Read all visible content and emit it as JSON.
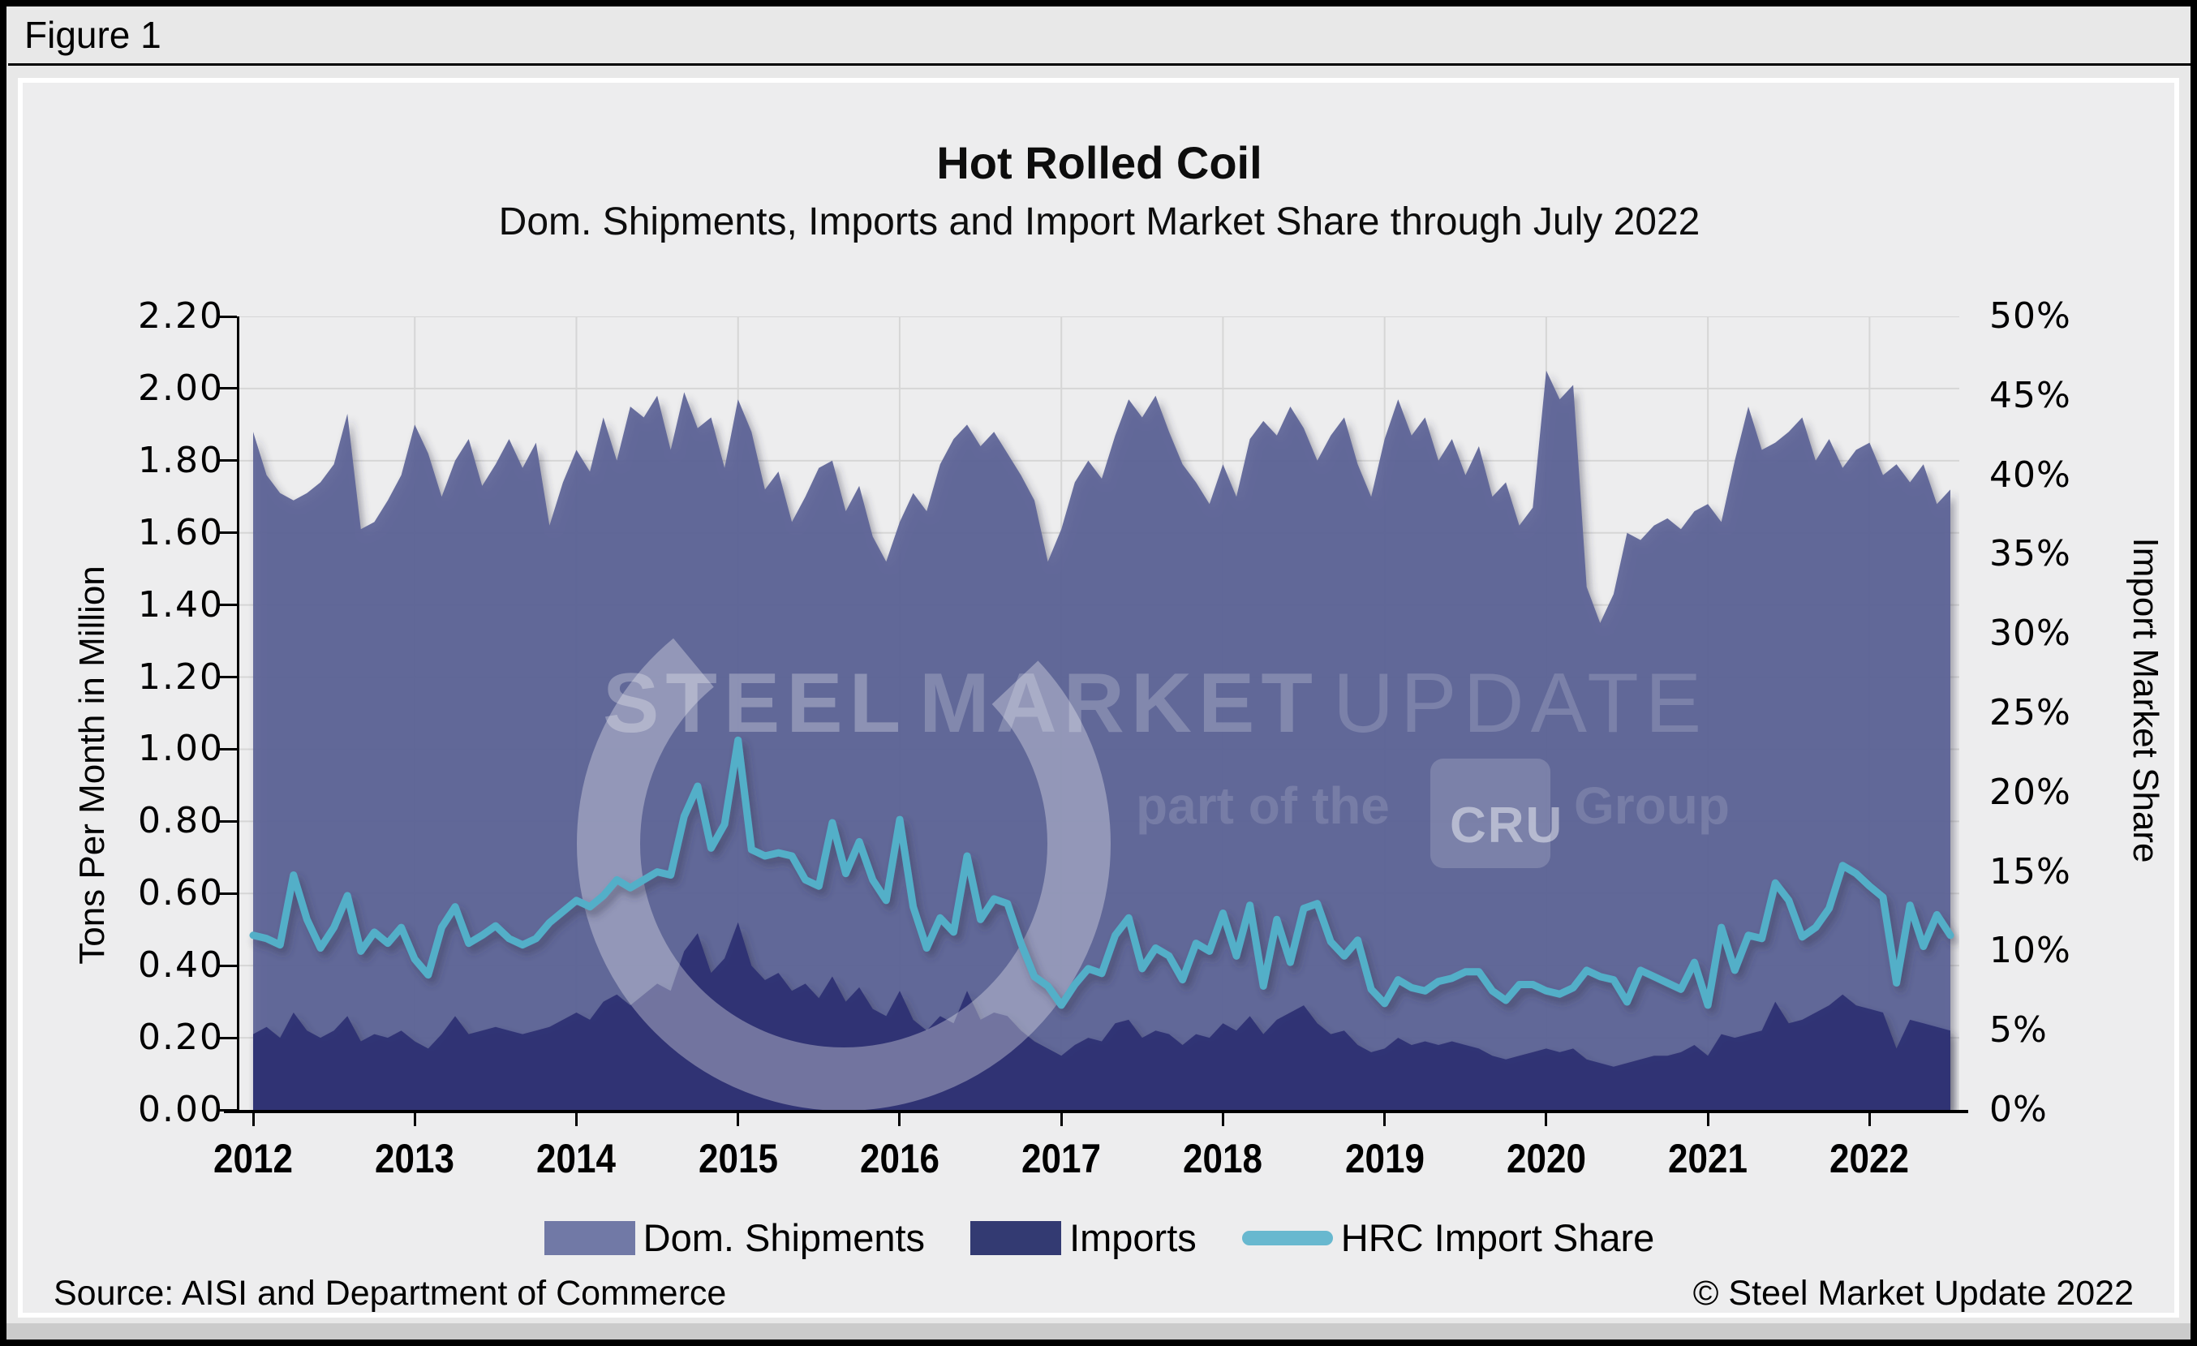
{
  "figure_label": "Figure 1",
  "title": "Hot Rolled Coil",
  "subtitle": "Dom. Shipments, Imports and Import Market Share through July 2022",
  "left_axis": {
    "label": "Tons Per Month in Million",
    "min": 0,
    "max": 2.2,
    "step": 0.2,
    "ticks": [
      "0.00",
      "0.20",
      "0.40",
      "0.60",
      "0.80",
      "1.00",
      "1.20",
      "1.40",
      "1.60",
      "1.80",
      "2.00",
      "2.20"
    ]
  },
  "right_axis": {
    "label": "Import Market Share",
    "min": 0,
    "max": 50,
    "step": 5,
    "ticks": [
      "0%",
      "5%",
      "10%",
      "15%",
      "20%",
      "25%",
      "30%",
      "35%",
      "40%",
      "45%",
      "50%"
    ]
  },
  "x_axis": {
    "years": [
      "2012",
      "2013",
      "2014",
      "2015",
      "2016",
      "2017",
      "2018",
      "2019",
      "2020",
      "2021",
      "2022"
    ]
  },
  "legend": {
    "items": [
      {
        "label": "Dom. Shipments",
        "color": "#7179a6",
        "type": "area-swatch"
      },
      {
        "label": "Imports",
        "color": "#333a72",
        "type": "area-swatch"
      },
      {
        "label": "HRC Import Share",
        "color": "#68b8cf",
        "type": "line-swatch"
      }
    ]
  },
  "watermark": {
    "words": [
      {
        "text": "STEEL",
        "opacity": 0.2,
        "weight": "bold"
      },
      {
        "text": "MARKET",
        "opacity": 0.13,
        "weight": "bold"
      },
      {
        "text": "UPDATE",
        "opacity": 0.09,
        "weight": "normal"
      }
    ],
    "tagline_prefix": "part of the",
    "tagline_box": "CRU",
    "tagline_suffix": "Group",
    "logo": "crescent-c-logo"
  },
  "source": "Source: AISI and Department of Commerce",
  "copyright": "© Steel Market Update 2022",
  "colors": {
    "dom_shipments_fill": "#5d6397",
    "imports_fill": "#2e3274",
    "share_line": "#53afc8",
    "gridline": "#d6d6d6",
    "axis": "#000000"
  },
  "chart_data": {
    "type": "area",
    "x_unit": "month",
    "x_range": [
      "2012-01",
      "2022-07"
    ],
    "left_ylim": [
      0,
      2.2
    ],
    "right_ylim": [
      0,
      50
    ],
    "grid": true,
    "legend_position": "bottom",
    "series": [
      {
        "name": "Dom. Shipments",
        "axis": "left",
        "render": "area",
        "values": [
          1.88,
          1.76,
          1.71,
          1.69,
          1.71,
          1.74,
          1.79,
          1.93,
          1.61,
          1.63,
          1.69,
          1.76,
          1.9,
          1.82,
          1.7,
          1.8,
          1.86,
          1.73,
          1.79,
          1.86,
          1.78,
          1.85,
          1.62,
          1.74,
          1.83,
          1.77,
          1.92,
          1.8,
          1.95,
          1.92,
          1.98,
          1.83,
          1.99,
          1.89,
          1.92,
          1.78,
          1.97,
          1.88,
          1.72,
          1.77,
          1.63,
          1.7,
          1.78,
          1.8,
          1.66,
          1.73,
          1.59,
          1.52,
          1.63,
          1.71,
          1.66,
          1.79,
          1.86,
          1.9,
          1.84,
          1.88,
          1.82,
          1.76,
          1.69,
          1.52,
          1.61,
          1.74,
          1.8,
          1.75,
          1.87,
          1.97,
          1.92,
          1.98,
          1.88,
          1.79,
          1.74,
          1.68,
          1.79,
          1.7,
          1.86,
          1.91,
          1.87,
          1.95,
          1.89,
          1.8,
          1.87,
          1.92,
          1.79,
          1.7,
          1.86,
          1.97,
          1.87,
          1.92,
          1.8,
          1.86,
          1.76,
          1.84,
          1.7,
          1.74,
          1.62,
          1.67,
          2.05,
          1.97,
          2.01,
          1.45,
          1.35,
          1.43,
          1.6,
          1.58,
          1.62,
          1.64,
          1.61,
          1.66,
          1.68,
          1.63,
          1.8,
          1.95,
          1.83,
          1.85,
          1.88,
          1.92,
          1.8,
          1.86,
          1.78,
          1.83,
          1.85,
          1.76,
          1.79,
          1.74,
          1.79,
          1.68,
          1.72
        ]
      },
      {
        "name": "Imports",
        "axis": "left",
        "render": "area",
        "values": [
          0.21,
          0.23,
          0.2,
          0.27,
          0.22,
          0.2,
          0.22,
          0.26,
          0.19,
          0.21,
          0.2,
          0.22,
          0.19,
          0.17,
          0.21,
          0.26,
          0.21,
          0.22,
          0.23,
          0.22,
          0.21,
          0.22,
          0.23,
          0.25,
          0.27,
          0.25,
          0.3,
          0.32,
          0.29,
          0.32,
          0.35,
          0.33,
          0.44,
          0.49,
          0.38,
          0.42,
          0.52,
          0.4,
          0.36,
          0.38,
          0.33,
          0.35,
          0.31,
          0.37,
          0.3,
          0.34,
          0.28,
          0.26,
          0.33,
          0.25,
          0.22,
          0.26,
          0.24,
          0.33,
          0.25,
          0.27,
          0.26,
          0.22,
          0.19,
          0.17,
          0.15,
          0.18,
          0.2,
          0.19,
          0.24,
          0.25,
          0.2,
          0.22,
          0.21,
          0.18,
          0.21,
          0.2,
          0.24,
          0.22,
          0.26,
          0.21,
          0.25,
          0.27,
          0.29,
          0.24,
          0.21,
          0.22,
          0.18,
          0.16,
          0.17,
          0.2,
          0.18,
          0.19,
          0.18,
          0.19,
          0.18,
          0.17,
          0.15,
          0.14,
          0.15,
          0.16,
          0.17,
          0.16,
          0.17,
          0.14,
          0.13,
          0.12,
          0.13,
          0.14,
          0.15,
          0.15,
          0.16,
          0.18,
          0.15,
          0.21,
          0.2,
          0.21,
          0.22,
          0.3,
          0.24,
          0.25,
          0.27,
          0.29,
          0.32,
          0.29,
          0.28,
          0.27,
          0.17,
          0.25,
          0.24,
          0.23,
          0.22
        ]
      },
      {
        "name": "HRC Import Share",
        "axis": "right",
        "render": "line",
        "values": [
          11.0,
          10.8,
          10.4,
          14.8,
          12.0,
          10.2,
          11.5,
          13.5,
          10.0,
          11.2,
          10.5,
          11.5,
          9.5,
          8.5,
          11.5,
          12.8,
          10.5,
          11.0,
          11.6,
          10.8,
          10.4,
          10.8,
          11.8,
          12.5,
          13.2,
          12.8,
          13.5,
          14.5,
          14.0,
          14.5,
          15.0,
          14.8,
          18.5,
          20.4,
          16.5,
          18.0,
          23.3,
          16.4,
          16.0,
          16.2,
          16.0,
          14.5,
          14.1,
          18.1,
          14.9,
          16.9,
          14.5,
          13.2,
          18.3,
          12.8,
          10.2,
          12.1,
          11.2,
          16.0,
          12.0,
          13.3,
          13.0,
          10.5,
          8.4,
          7.8,
          6.6,
          7.9,
          8.9,
          8.6,
          11.0,
          12.1,
          8.9,
          10.2,
          9.7,
          8.2,
          10.5,
          10.0,
          12.4,
          9.7,
          12.9,
          7.8,
          12.0,
          9.3,
          12.7,
          13.0,
          10.6,
          9.7,
          10.7,
          7.6,
          6.7,
          8.2,
          7.7,
          7.5,
          8.1,
          8.3,
          8.7,
          8.7,
          7.5,
          6.9,
          7.9,
          7.9,
          7.5,
          7.3,
          7.7,
          8.8,
          8.4,
          8.2,
          6.8,
          8.8,
          8.4,
          8.0,
          7.6,
          9.3,
          6.6,
          11.5,
          8.8,
          11.0,
          10.8,
          14.3,
          13.2,
          10.9,
          11.5,
          12.7,
          15.4,
          14.9,
          14.1,
          13.4,
          8.0,
          12.9,
          10.3,
          12.3,
          11.0
        ]
      }
    ]
  }
}
